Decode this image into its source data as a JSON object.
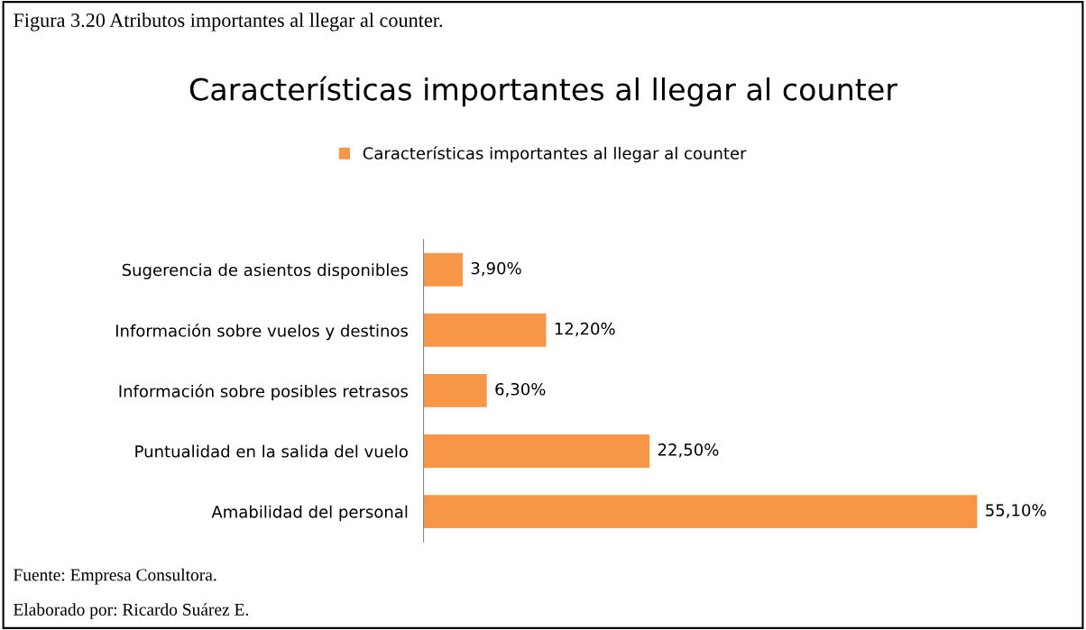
{
  "chart_data": {
    "type": "bar",
    "orientation": "horizontal",
    "title": "Características importantes al llegar al counter",
    "categories": [
      "Sugerencia de asientos disponibles",
      "Información sobre vuelos y destinos",
      "Información sobre posibles retrasos",
      "Puntualidad en la salida del vuelo",
      "Amabilidad del personal"
    ],
    "series": [
      {
        "name": "Características importantes al llegar al counter",
        "color": "#f79646",
        "values": [
          3.9,
          12.2,
          6.3,
          22.5,
          55.1
        ],
        "value_labels": [
          "3,90%",
          "12,20%",
          "6,30%",
          "22,50%",
          "55,10%"
        ]
      }
    ],
    "legend": "top",
    "grid": false,
    "tick_labels": "y",
    "annotations": [
      "Figura 3.20 Atributos importantes al llegar al counter.",
      "Fuente: Empresa Consultora.",
      "Elaborado por: Ricardo Suárez E."
    ]
  }
}
